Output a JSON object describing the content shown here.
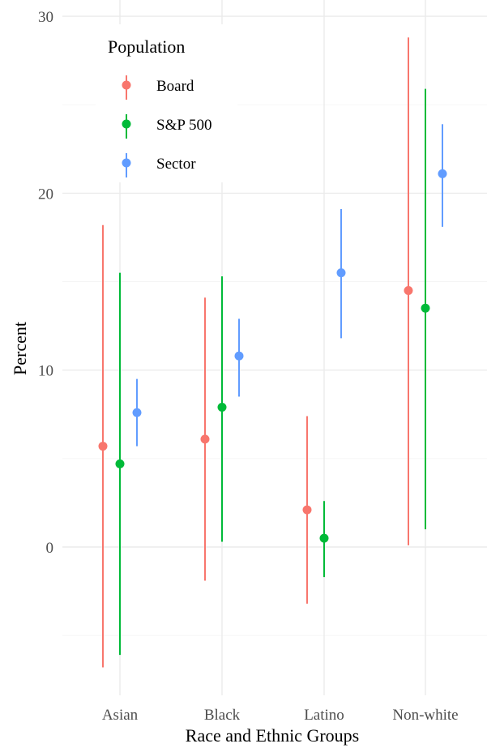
{
  "chart_data": {
    "type": "pointrange",
    "xlabel": "Race and Ethnic Groups",
    "ylabel": "Percent",
    "categories": [
      "Asian",
      "Black",
      "Latino",
      "Non-white"
    ],
    "ylim": [
      -8.2,
      30.8
    ],
    "yticks": [
      0,
      10,
      20,
      30
    ],
    "yminor": [
      -5,
      5,
      15,
      25
    ],
    "grid": true,
    "legend": {
      "title": "Population",
      "position": "top-left"
    },
    "series": [
      {
        "name": "Board",
        "color": "#F8766D",
        "values": [
          5.7,
          6.1,
          2.1,
          14.5
        ],
        "lower": [
          -6.8,
          -1.9,
          -3.2,
          0.1
        ],
        "upper": [
          18.2,
          14.1,
          7.4,
          28.8
        ]
      },
      {
        "name": "S&P 500",
        "color": "#00BA38",
        "values": [
          4.7,
          7.9,
          0.5,
          13.5
        ],
        "lower": [
          -6.1,
          0.3,
          -1.7,
          1.0
        ],
        "upper": [
          15.5,
          15.3,
          2.6,
          25.9
        ]
      },
      {
        "name": "Sector",
        "color": "#619CFF",
        "values": [
          7.6,
          10.8,
          15.5,
          21.1
        ],
        "lower": [
          5.7,
          8.5,
          11.8,
          18.1
        ],
        "upper": [
          9.5,
          12.9,
          19.1,
          23.9
        ]
      }
    ]
  }
}
